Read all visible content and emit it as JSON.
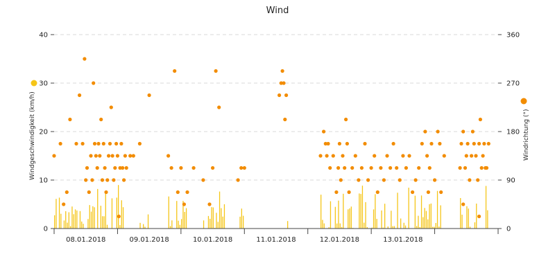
{
  "chart_data": {
    "type": "scatter",
    "title": "Wind",
    "y_left": {
      "label": "Windgeschwindigkeit (km/h)",
      "range": [
        0,
        40
      ],
      "ticks": [
        "0",
        "10",
        "20",
        "30",
        "40"
      ]
    },
    "y_right": {
      "label": "Windrichtung (°)",
      "range": [
        0,
        360
      ],
      "ticks": [
        "0",
        "90",
        "180",
        "270",
        "360"
      ]
    },
    "x_axis": {
      "range_days": [
        0,
        7
      ],
      "ticks": [
        {
          "label": "08.01.2018",
          "day": 0.5
        },
        {
          "label": "09.01.2018",
          "day": 1.5
        },
        {
          "label": "10.01.2018",
          "day": 2.5
        },
        {
          "label": "11.01.2018",
          "day": 3.5
        },
        {
          "label": "12.01.2018",
          "day": 4.5
        },
        {
          "label": "13.01.2018",
          "day": 5.5
        }
      ]
    },
    "grid": "horizontal-dashed",
    "series": [
      {
        "name": "",
        "kind": "bars",
        "axis": "left",
        "color": "#f5c518",
        "segments": [
          {
            "from": 0.0,
            "to": 1.1,
            "max": 9
          },
          {
            "from": 1.35,
            "to": 1.5,
            "max": 3
          },
          {
            "from": 1.8,
            "to": 2.1,
            "max": 8
          },
          {
            "from": 2.35,
            "to": 2.7,
            "max": 8
          },
          {
            "from": 2.9,
            "to": 3.0,
            "max": 5
          },
          {
            "from": 3.6,
            "to": 3.7,
            "max": 6
          },
          {
            "from": 4.2,
            "to": 6.1,
            "max": 9
          },
          {
            "from": 6.4,
            "to": 6.85,
            "max": 9
          }
        ]
      },
      {
        "name": "",
        "kind": "points",
        "axis": "left",
        "color": "#f28c00",
        "points": [
          [
            0.0,
            15
          ],
          [
            0.1,
            17.5
          ],
          [
            0.15,
            5
          ],
          [
            0.2,
            7.5
          ],
          [
            0.25,
            22.5
          ],
          [
            0.35,
            17.5
          ],
          [
            0.4,
            27.5
          ],
          [
            0.45,
            17.5
          ],
          [
            0.48,
            35
          ],
          [
            0.5,
            10
          ],
          [
            0.52,
            12.5
          ],
          [
            0.55,
            7.5
          ],
          [
            0.58,
            15
          ],
          [
            0.6,
            10
          ],
          [
            0.62,
            30
          ],
          [
            0.64,
            17.5
          ],
          [
            0.66,
            15
          ],
          [
            0.68,
            12.5
          ],
          [
            0.7,
            17.5
          ],
          [
            0.72,
            15
          ],
          [
            0.74,
            22.5
          ],
          [
            0.76,
            10
          ],
          [
            0.78,
            17.5
          ],
          [
            0.8,
            12.5
          ],
          [
            0.82,
            7.5
          ],
          [
            0.84,
            10
          ],
          [
            0.86,
            15
          ],
          [
            0.88,
            17.5
          ],
          [
            0.9,
            25
          ],
          [
            0.92,
            15
          ],
          [
            0.94,
            10
          ],
          [
            0.96,
            12.5
          ],
          [
            0.98,
            17.5
          ],
          [
            1.0,
            15
          ],
          [
            1.02,
            2.5
          ],
          [
            1.04,
            12.5
          ],
          [
            1.06,
            17.5
          ],
          [
            1.08,
            12.5
          ],
          [
            1.1,
            10
          ],
          [
            1.12,
            15
          ],
          [
            1.14,
            12.5
          ],
          [
            1.2,
            15
          ],
          [
            1.25,
            15
          ],
          [
            1.35,
            17.5
          ],
          [
            1.5,
            27.5
          ],
          [
            1.8,
            15
          ],
          [
            1.85,
            12.5
          ],
          [
            1.9,
            32.5
          ],
          [
            1.95,
            7.5
          ],
          [
            2.0,
            12.5
          ],
          [
            2.05,
            5
          ],
          [
            2.1,
            7.5
          ],
          [
            2.2,
            12.5
          ],
          [
            2.35,
            10
          ],
          [
            2.45,
            5
          ],
          [
            2.5,
            12.5
          ],
          [
            2.55,
            32.5
          ],
          [
            2.6,
            25
          ],
          [
            2.9,
            10
          ],
          [
            2.95,
            12.5
          ],
          [
            3.0,
            12.5
          ],
          [
            3.55,
            27.5
          ],
          [
            3.58,
            30
          ],
          [
            3.6,
            32.5
          ],
          [
            3.62,
            30
          ],
          [
            3.64,
            22.5
          ],
          [
            3.66,
            27.5
          ],
          [
            4.2,
            15
          ],
          [
            4.25,
            20
          ],
          [
            4.28,
            17.5
          ],
          [
            4.3,
            15
          ],
          [
            4.32,
            17.5
          ],
          [
            4.35,
            12.5
          ],
          [
            4.4,
            15
          ],
          [
            4.45,
            7.5
          ],
          [
            4.48,
            12.5
          ],
          [
            4.5,
            17.5
          ],
          [
            4.52,
            10
          ],
          [
            4.55,
            15
          ],
          [
            4.58,
            12.5
          ],
          [
            4.6,
            22.5
          ],
          [
            4.62,
            17.5
          ],
          [
            4.65,
            7.5
          ],
          [
            4.7,
            12.5
          ],
          [
            4.75,
            15
          ],
          [
            4.8,
            10
          ],
          [
            4.85,
            12.5
          ],
          [
            4.9,
            17.5
          ],
          [
            4.95,
            10
          ],
          [
            5.0,
            12.5
          ],
          [
            5.05,
            15
          ],
          [
            5.1,
            7.5
          ],
          [
            5.15,
            12.5
          ],
          [
            5.2,
            10
          ],
          [
            5.25,
            15
          ],
          [
            5.3,
            12.5
          ],
          [
            5.35,
            17.5
          ],
          [
            5.4,
            12.5
          ],
          [
            5.45,
            10
          ],
          [
            5.5,
            15
          ],
          [
            5.55,
            12.5
          ],
          [
            5.6,
            15
          ],
          [
            5.65,
            7.5
          ],
          [
            5.7,
            10
          ],
          [
            5.75,
            12.5
          ],
          [
            5.8,
            17.5
          ],
          [
            5.85,
            20
          ],
          [
            5.88,
            15
          ],
          [
            5.9,
            7.5
          ],
          [
            5.92,
            12.5
          ],
          [
            5.95,
            17.5
          ],
          [
            6.0,
            10
          ],
          [
            6.05,
            20
          ],
          [
            6.08,
            17.5
          ],
          [
            6.1,
            7.5
          ],
          [
            6.15,
            15
          ],
          [
            6.4,
            12.5
          ],
          [
            6.42,
            17.5
          ],
          [
            6.45,
            20
          ],
          [
            6.48,
            12.5
          ],
          [
            6.5,
            15
          ],
          [
            6.52,
            17.5
          ],
          [
            6.55,
            10
          ],
          [
            6.58,
            15
          ],
          [
            6.6,
            20
          ],
          [
            6.62,
            17.5
          ],
          [
            6.65,
            15
          ],
          [
            6.68,
            10
          ],
          [
            6.7,
            17.5
          ],
          [
            6.72,
            22.5
          ],
          [
            6.74,
            12.5
          ],
          [
            6.76,
            15
          ],
          [
            6.78,
            17.5
          ],
          [
            6.8,
            12.5
          ],
          [
            6.82,
            12.5
          ],
          [
            6.85,
            17.5
          ],
          [
            6.45,
            5
          ],
          [
            6.7,
            2.5
          ]
        ]
      }
    ]
  }
}
